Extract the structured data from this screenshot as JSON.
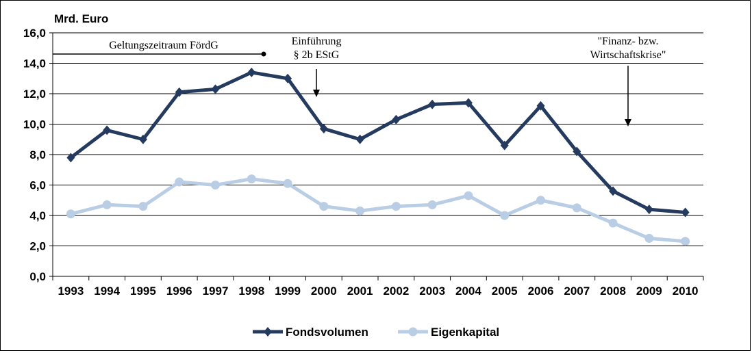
{
  "chart_data": {
    "type": "line",
    "unit_label": "Mrd. Euro",
    "categories": [
      "1993",
      "1994",
      "1995",
      "1996",
      "1997",
      "1998",
      "1999",
      "2000",
      "2001",
      "2002",
      "2003",
      "2004",
      "2005",
      "2006",
      "2007",
      "2008",
      "2009",
      "2010"
    ],
    "y_ticks": [
      "0,0",
      "2,0",
      "4,0",
      "6,0",
      "8,0",
      "10,0",
      "12,0",
      "14,0",
      "16,0"
    ],
    "ylim": [
      0,
      16
    ],
    "grid": true,
    "legend_position": "bottom",
    "series": [
      {
        "name": "Fondsvolumen",
        "color": "#243a5e",
        "marker": "diamond",
        "values": [
          7.8,
          9.6,
          9.0,
          12.1,
          12.3,
          13.4,
          13.0,
          9.7,
          9.0,
          10.3,
          11.3,
          11.4,
          8.6,
          11.2,
          8.2,
          5.6,
          4.4,
          4.2
        ]
      },
      {
        "name": "Eigenkapital",
        "color": "#b9cde5",
        "marker": "circle",
        "values": [
          4.1,
          4.7,
          4.6,
          6.2,
          6.0,
          6.4,
          6.1,
          4.6,
          4.3,
          4.6,
          4.7,
          5.3,
          4.0,
          5.0,
          4.5,
          3.5,
          2.5,
          2.3
        ]
      }
    ],
    "annotations": {
      "period_label": "Geltungszeitraum  FördG",
      "einf_line1": "Einführung",
      "einf_line2": "§ 2b EStG",
      "krise_line1": "\"Finanz-  bzw.",
      "krise_line2": "Wirtschaftskrise\""
    }
  }
}
